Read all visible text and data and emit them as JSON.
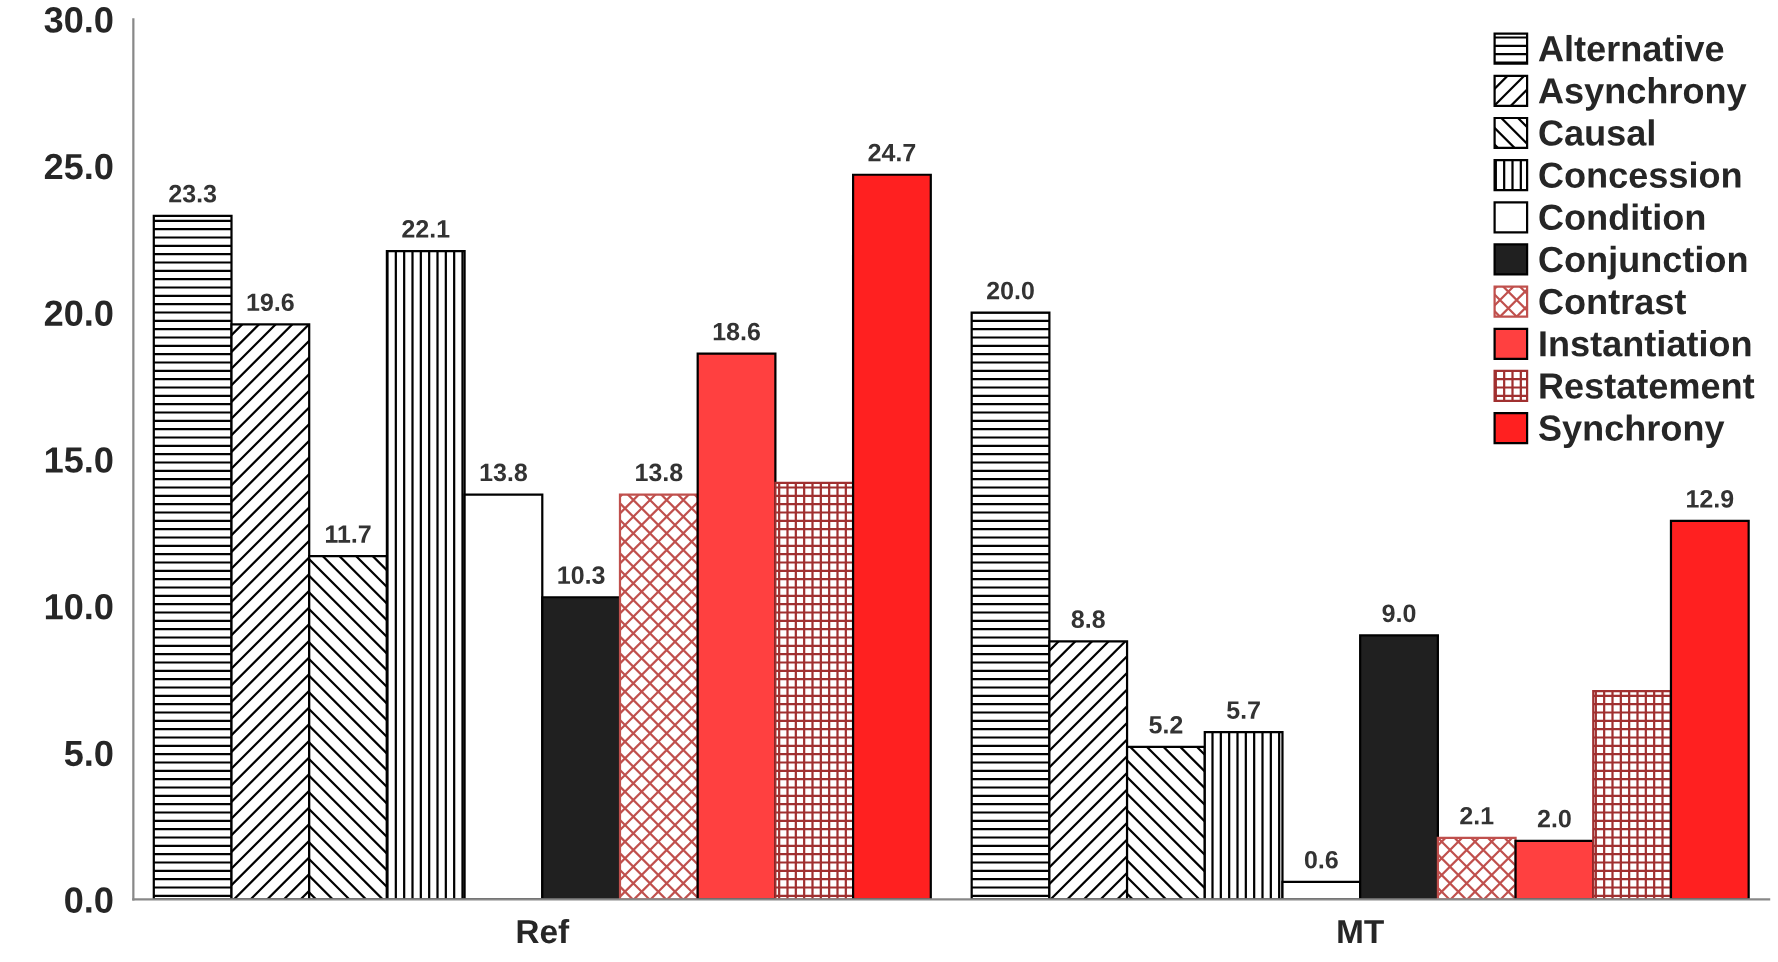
{
  "chart_data": {
    "type": "bar",
    "categories": [
      "Ref",
      "MT"
    ],
    "series": [
      {
        "name": "Alternative",
        "color": "#000000",
        "values": [
          23.3,
          20.0
        ],
        "value_labels": [
          "23.3",
          "20.0"
        ]
      },
      {
        "name": "Asynchrony",
        "color": "#000000",
        "values": [
          19.6,
          8.8
        ],
        "value_labels": [
          "19.6",
          "8.8"
        ]
      },
      {
        "name": "Causal",
        "color": "#000000",
        "values": [
          11.7,
          5.2
        ],
        "value_labels": [
          "11.7",
          "5.2"
        ]
      },
      {
        "name": "Concession",
        "color": "#000000",
        "values": [
          22.1,
          5.7
        ],
        "value_labels": [
          "22.1",
          "5.7"
        ]
      },
      {
        "name": "Condition",
        "color": "#ffffff",
        "values": [
          13.8,
          0.6
        ],
        "value_labels": [
          "13.8",
          "0.6"
        ]
      },
      {
        "name": "Conjunction",
        "color": "#202020",
        "values": [
          10.3,
          9.0
        ],
        "value_labels": [
          "10.3",
          "9.0"
        ]
      },
      {
        "name": "Contrast",
        "color": "#c0504d",
        "values": [
          13.8,
          2.1
        ],
        "value_labels": [
          "13.8",
          "2.1"
        ]
      },
      {
        "name": "Instantiation",
        "color": "#ff4040",
        "values": [
          18.6,
          2.0
        ],
        "value_labels": [
          "18.6",
          "2.0"
        ]
      },
      {
        "name": "Restatement",
        "color": "#a03030",
        "values": [
          14.2,
          7.1
        ],
        "value_labels": [
          null,
          null
        ]
      },
      {
        "name": "Synchrony",
        "color": "#ff2020",
        "values": [
          24.7,
          12.9
        ],
        "value_labels": [
          "24.7",
          "12.9"
        ]
      }
    ],
    "ylim": [
      0,
      30
    ],
    "yticks": [
      {
        "value": 0,
        "label": "0.0"
      },
      {
        "value": 5,
        "label": "5.0"
      },
      {
        "value": 10,
        "label": "10.0"
      },
      {
        "value": 15,
        "label": "15.0"
      },
      {
        "value": 20,
        "label": "20.0"
      },
      {
        "value": 25,
        "label": "25.0"
      },
      {
        "value": 30,
        "label": "30.0"
      }
    ],
    "grid": false,
    "legend": "top right"
  }
}
